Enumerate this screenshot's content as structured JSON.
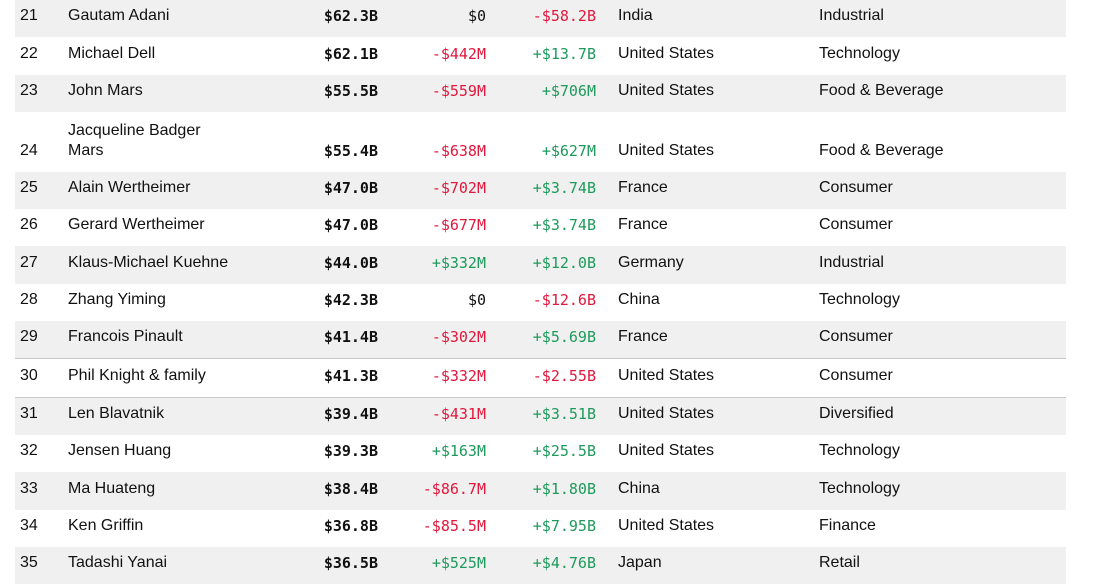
{
  "colors": {
    "negative": "#e3163b",
    "positive": "#1d9a5b",
    "shaded_row": "#f0f0f0"
  },
  "rows": [
    {
      "rank": "21",
      "name": "Gautam Adani",
      "worth": "$62.3B",
      "last_change": "$0",
      "last_sign": "zero",
      "ytd_change": "-$58.2B",
      "ytd_sign": "neg",
      "country": "India",
      "industry": "Industrial"
    },
    {
      "rank": "22",
      "name": "Michael Dell",
      "worth": "$62.1B",
      "last_change": "-$442M",
      "last_sign": "neg",
      "ytd_change": "+$13.7B",
      "ytd_sign": "pos",
      "country": "United States",
      "industry": "Technology"
    },
    {
      "rank": "23",
      "name": "John Mars",
      "worth": "$55.5B",
      "last_change": "-$559M",
      "last_sign": "neg",
      "ytd_change": "+$706M",
      "ytd_sign": "pos",
      "country": "United States",
      "industry": "Food & Beverage"
    },
    {
      "rank": "24",
      "name": "Jacqueline Badger Mars",
      "worth": "$55.4B",
      "last_change": "-$638M",
      "last_sign": "neg",
      "ytd_change": "+$627M",
      "ytd_sign": "pos",
      "country": "United States",
      "industry": "Food & Beverage"
    },
    {
      "rank": "25",
      "name": "Alain Wertheimer",
      "worth": "$47.0B",
      "last_change": "-$702M",
      "last_sign": "neg",
      "ytd_change": "+$3.74B",
      "ytd_sign": "pos",
      "country": "France",
      "industry": "Consumer"
    },
    {
      "rank": "26",
      "name": "Gerard Wertheimer",
      "worth": "$47.0B",
      "last_change": "-$677M",
      "last_sign": "neg",
      "ytd_change": "+$3.74B",
      "ytd_sign": "pos",
      "country": "France",
      "industry": "Consumer"
    },
    {
      "rank": "27",
      "name": "Klaus-Michael Kuehne",
      "worth": "$44.0B",
      "last_change": "+$332M",
      "last_sign": "pos",
      "ytd_change": "+$12.0B",
      "ytd_sign": "pos",
      "country": "Germany",
      "industry": "Industrial"
    },
    {
      "rank": "28",
      "name": "Zhang Yiming",
      "worth": "$42.3B",
      "last_change": "$0",
      "last_sign": "zero",
      "ytd_change": "-$12.6B",
      "ytd_sign": "neg",
      "country": "China",
      "industry": "Technology"
    },
    {
      "rank": "29",
      "name": "Francois Pinault",
      "worth": "$41.4B",
      "last_change": "-$302M",
      "last_sign": "neg",
      "ytd_change": "+$5.69B",
      "ytd_sign": "pos",
      "country": "France",
      "industry": "Consumer"
    },
    {
      "rank": "30",
      "name": "Phil Knight & family",
      "worth": "$41.3B",
      "last_change": "-$332M",
      "last_sign": "neg",
      "ytd_change": "-$2.55B",
      "ytd_sign": "neg",
      "country": "United States",
      "industry": "Consumer"
    },
    {
      "rank": "31",
      "name": "Len Blavatnik",
      "worth": "$39.4B",
      "last_change": "-$431M",
      "last_sign": "neg",
      "ytd_change": "+$3.51B",
      "ytd_sign": "pos",
      "country": "United States",
      "industry": "Diversified"
    },
    {
      "rank": "32",
      "name": "Jensen Huang",
      "worth": "$39.3B",
      "last_change": "+$163M",
      "last_sign": "pos",
      "ytd_change": "+$25.5B",
      "ytd_sign": "pos",
      "country": "United States",
      "industry": "Technology"
    },
    {
      "rank": "33",
      "name": "Ma Huateng",
      "worth": "$38.4B",
      "last_change": "-$86.7M",
      "last_sign": "neg",
      "ytd_change": "+$1.80B",
      "ytd_sign": "pos",
      "country": "China",
      "industry": "Technology"
    },
    {
      "rank": "34",
      "name": "Ken Griffin",
      "worth": "$36.8B",
      "last_change": "-$85.5M",
      "last_sign": "neg",
      "ytd_change": "+$7.95B",
      "ytd_sign": "pos",
      "country": "United States",
      "industry": "Finance"
    },
    {
      "rank": "35",
      "name": "Tadashi Yanai",
      "worth": "$36.5B",
      "last_change": "+$525M",
      "last_sign": "pos",
      "ytd_change": "+$4.76B",
      "ytd_sign": "pos",
      "country": "Japan",
      "industry": "Retail"
    }
  ]
}
